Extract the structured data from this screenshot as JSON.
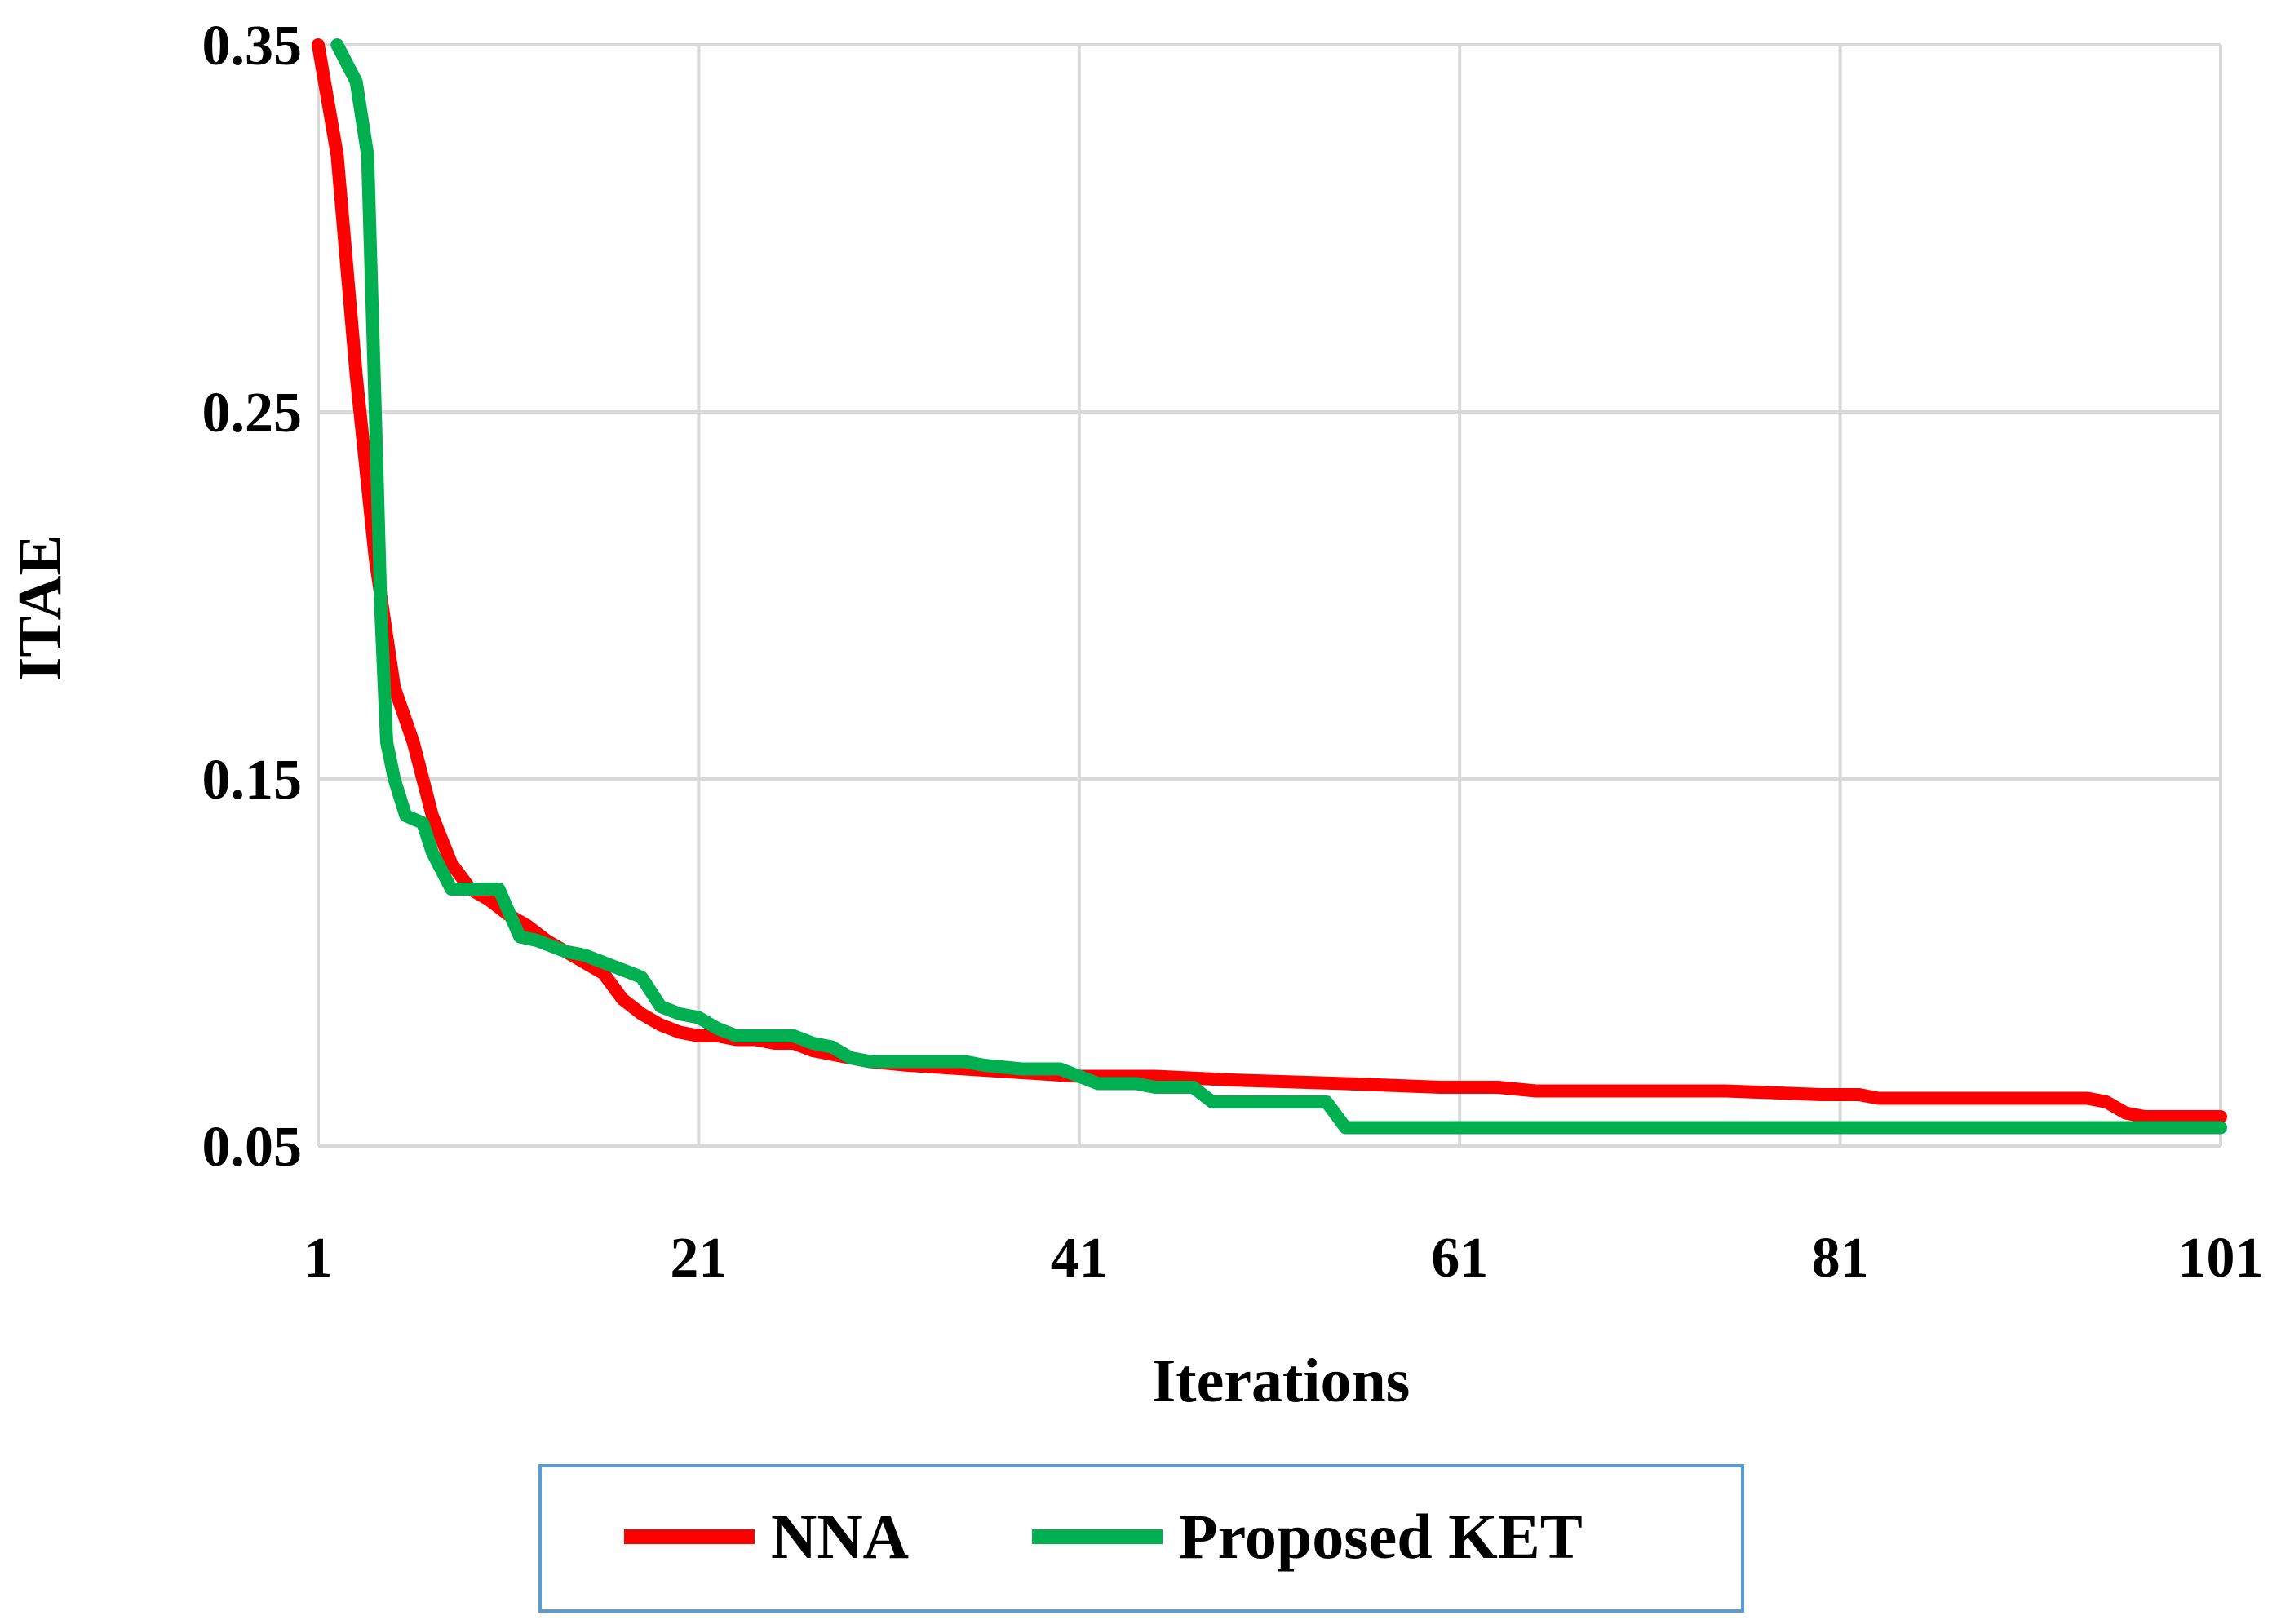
{
  "chart_data": {
    "type": "line",
    "xlabel": "Iterations",
    "ylabel": "ITAE",
    "xlim": [
      1,
      101
    ],
    "ylim": [
      0.05,
      0.35
    ],
    "x_ticks": [
      "1",
      "21",
      "41",
      "61",
      "81",
      "101"
    ],
    "y_ticks": [
      "0.35",
      "0.25",
      "0.15",
      "0.05"
    ],
    "grid": true,
    "legend_position": "bottom",
    "series": [
      {
        "name": "NNA",
        "color": "#ff0000",
        "points": [
          [
            1,
            0.35
          ],
          [
            2,
            0.32
          ],
          [
            3,
            0.26
          ],
          [
            4,
            0.21
          ],
          [
            5,
            0.175
          ],
          [
            6,
            0.16
          ],
          [
            7,
            0.14
          ],
          [
            8,
            0.127
          ],
          [
            9,
            0.12
          ],
          [
            10,
            0.117
          ],
          [
            11,
            0.113
          ],
          [
            12,
            0.11
          ],
          [
            13,
            0.106
          ],
          [
            14,
            0.103
          ],
          [
            15,
            0.1
          ],
          [
            16,
            0.097
          ],
          [
            17,
            0.09
          ],
          [
            18,
            0.086
          ],
          [
            19,
            0.083
          ],
          [
            20,
            0.081
          ],
          [
            21,
            0.08
          ],
          [
            22,
            0.08
          ],
          [
            23,
            0.079
          ],
          [
            24,
            0.079
          ],
          [
            25,
            0.078
          ],
          [
            26,
            0.078
          ],
          [
            27,
            0.076
          ],
          [
            28,
            0.075
          ],
          [
            29,
            0.074
          ],
          [
            30,
            0.073
          ],
          [
            32,
            0.072
          ],
          [
            35,
            0.071
          ],
          [
            38,
            0.07
          ],
          [
            41,
            0.069
          ],
          [
            45,
            0.069
          ],
          [
            49,
            0.068
          ],
          [
            55,
            0.067
          ],
          [
            60,
            0.066
          ],
          [
            63,
            0.066
          ],
          [
            65,
            0.065
          ],
          [
            70,
            0.065
          ],
          [
            75,
            0.065
          ],
          [
            80,
            0.064
          ],
          [
            82,
            0.064
          ],
          [
            83,
            0.063
          ],
          [
            88,
            0.063
          ],
          [
            94,
            0.063
          ],
          [
            95,
            0.062
          ],
          [
            96,
            0.059
          ],
          [
            97,
            0.058
          ],
          [
            101,
            0.058
          ]
        ]
      },
      {
        "name": "Proposed KET",
        "color": "#00b050",
        "points": [
          [
            2,
            0.35
          ],
          [
            3,
            0.34
          ],
          [
            3.6,
            0.32
          ],
          [
            4,
            0.25
          ],
          [
            4.3,
            0.195
          ],
          [
            4.6,
            0.16
          ],
          [
            5,
            0.15
          ],
          [
            5.6,
            0.14
          ],
          [
            6.5,
            0.138
          ],
          [
            7,
            0.13
          ],
          [
            8,
            0.12
          ],
          [
            9,
            0.12
          ],
          [
            10.5,
            0.12
          ],
          [
            11,
            0.114
          ],
          [
            11.6,
            0.107
          ],
          [
            12.5,
            0.106
          ],
          [
            13,
            0.105
          ],
          [
            14,
            0.103
          ],
          [
            15,
            0.102
          ],
          [
            16,
            0.1
          ],
          [
            17,
            0.098
          ],
          [
            18,
            0.096
          ],
          [
            19,
            0.088
          ],
          [
            20,
            0.086
          ],
          [
            21,
            0.085
          ],
          [
            22,
            0.082
          ],
          [
            23,
            0.08
          ],
          [
            24,
            0.08
          ],
          [
            26,
            0.08
          ],
          [
            27,
            0.078
          ],
          [
            28,
            0.077
          ],
          [
            29,
            0.074
          ],
          [
            30,
            0.073
          ],
          [
            35,
            0.073
          ],
          [
            36,
            0.072
          ],
          [
            38,
            0.071
          ],
          [
            40,
            0.071
          ],
          [
            41,
            0.069
          ],
          [
            42,
            0.067
          ],
          [
            44,
            0.067
          ],
          [
            45,
            0.066
          ],
          [
            47,
            0.066
          ],
          [
            48,
            0.062
          ],
          [
            53,
            0.062
          ],
          [
            54,
            0.062
          ],
          [
            55,
            0.055
          ],
          [
            101,
            0.055
          ]
        ]
      }
    ]
  }
}
